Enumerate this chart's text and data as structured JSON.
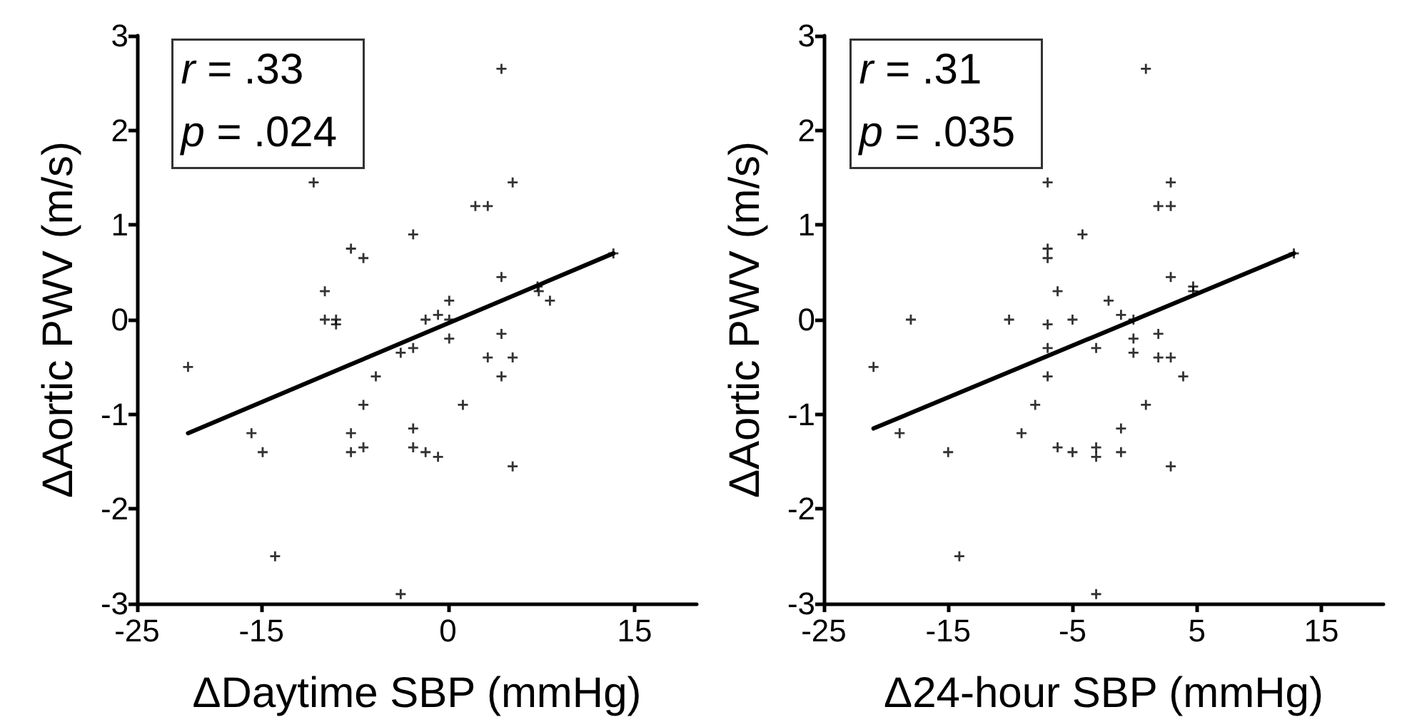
{
  "chart_data": [
    {
      "type": "scatter",
      "xlabel": "ΔDaytime SBP (mmHg)",
      "ylabel": "ΔAortic PWV (m/s)",
      "annotations": [
        "r = .33",
        "p = .024"
      ],
      "xlim": [
        -25,
        20
      ],
      "ylim": [
        -3,
        3
      ],
      "xticks": [
        -25,
        -15,
        0,
        15
      ],
      "yticks": [
        -3,
        -2,
        -1,
        0,
        1,
        2,
        3
      ],
      "grid": false,
      "marker": "cross",
      "series": [
        {
          "type": "scatter",
          "color": "#000000",
          "x": [
            4.3,
            -10.8,
            5.2,
            2.2,
            3.2,
            -2.8,
            -7.8,
            -6.8,
            13.3,
            -9.9,
            4.3,
            7.2,
            7.3,
            8.2,
            0.1,
            -9.9,
            -9,
            -9,
            -1.8,
            -0.8,
            0.1,
            0.1,
            4.3,
            -3.8,
            -2.8,
            -20.9,
            3.2,
            5.2,
            4.3,
            -5.8,
            -6.8,
            1.2,
            -15.8,
            -14.9,
            -7.8,
            -7.8,
            -6.8,
            -2.8,
            -2.8,
            -1.8,
            -0.8,
            5.2,
            -13.9,
            -3.8
          ],
          "values": [
            2.65,
            1.45,
            1.45,
            1.2,
            1.2,
            0.9,
            0.75,
            0.65,
            0.7,
            0.3,
            0.45,
            0.35,
            0.3,
            0.2,
            0.2,
            0,
            0,
            -0.05,
            0,
            0.05,
            0,
            -0.2,
            -0.15,
            -0.35,
            -0.3,
            -0.5,
            -0.4,
            -0.4,
            -0.6,
            -0.6,
            -0.9,
            -0.9,
            -1.2,
            -1.4,
            -1.2,
            -1.4,
            -1.35,
            -1.15,
            -1.35,
            -1.4,
            -1.45,
            -1.55,
            -2.5,
            -2.9
          ]
        },
        {
          "type": "line",
          "color": "#000000",
          "line_style": "solid",
          "marker": "none",
          "x": [
            -20.9,
            13.3
          ],
          "values": [
            -1.2,
            0.7
          ]
        }
      ]
    },
    {
      "type": "scatter",
      "xlabel": "Δ24-hour SBP (mmHg)",
      "ylabel": "ΔAortic PWV (m/s)",
      "annotations": [
        "r = .31",
        "p = .035"
      ],
      "xlim": [
        -25,
        20
      ],
      "ylim": [
        -3,
        3
      ],
      "xticks": [
        -25,
        -15,
        -5,
        5,
        15
      ],
      "yticks": [
        -3,
        -2,
        -1,
        0,
        1,
        2,
        3
      ],
      "grid": false,
      "marker": "cross",
      "series": [
        {
          "type": "scatter",
          "color": "#000000",
          "x": [
            0.9,
            -7,
            2.9,
            1.9,
            2.9,
            -4.2,
            -7,
            -7,
            12.8,
            2.9,
            -6.2,
            4.7,
            4.7,
            -2.1,
            -1.1,
            -18,
            -10.1,
            -7,
            -5,
            -0.1,
            1.9,
            -0.1,
            -3.1,
            -7,
            -21,
            -0.1,
            1.9,
            2.9,
            -7,
            3.9,
            -8,
            0.9,
            -18.9,
            -9.1,
            -1.1,
            -15,
            -6.2,
            -5,
            -3.1,
            -3.1,
            -1.1,
            2.9,
            -14.1,
            -3.1
          ],
          "values": [
            2.65,
            1.45,
            1.45,
            1.2,
            1.2,
            0.9,
            0.75,
            0.65,
            0.7,
            0.45,
            0.3,
            0.35,
            0.3,
            0.2,
            0.05,
            0,
            0,
            -0.05,
            0,
            0,
            -0.15,
            -0.2,
            -0.3,
            -0.3,
            -0.5,
            -0.35,
            -0.4,
            -0.4,
            -0.6,
            -0.6,
            -0.9,
            -0.9,
            -1.2,
            -1.2,
            -1.15,
            -1.4,
            -1.35,
            -1.4,
            -1.35,
            -1.45,
            -1.4,
            -1.55,
            -2.5,
            -2.9
          ]
        },
        {
          "type": "line",
          "color": "#000000",
          "line_style": "solid",
          "marker": "none",
          "x": [
            -21,
            12.8
          ],
          "values": [
            -1.15,
            0.7
          ]
        }
      ]
    }
  ]
}
